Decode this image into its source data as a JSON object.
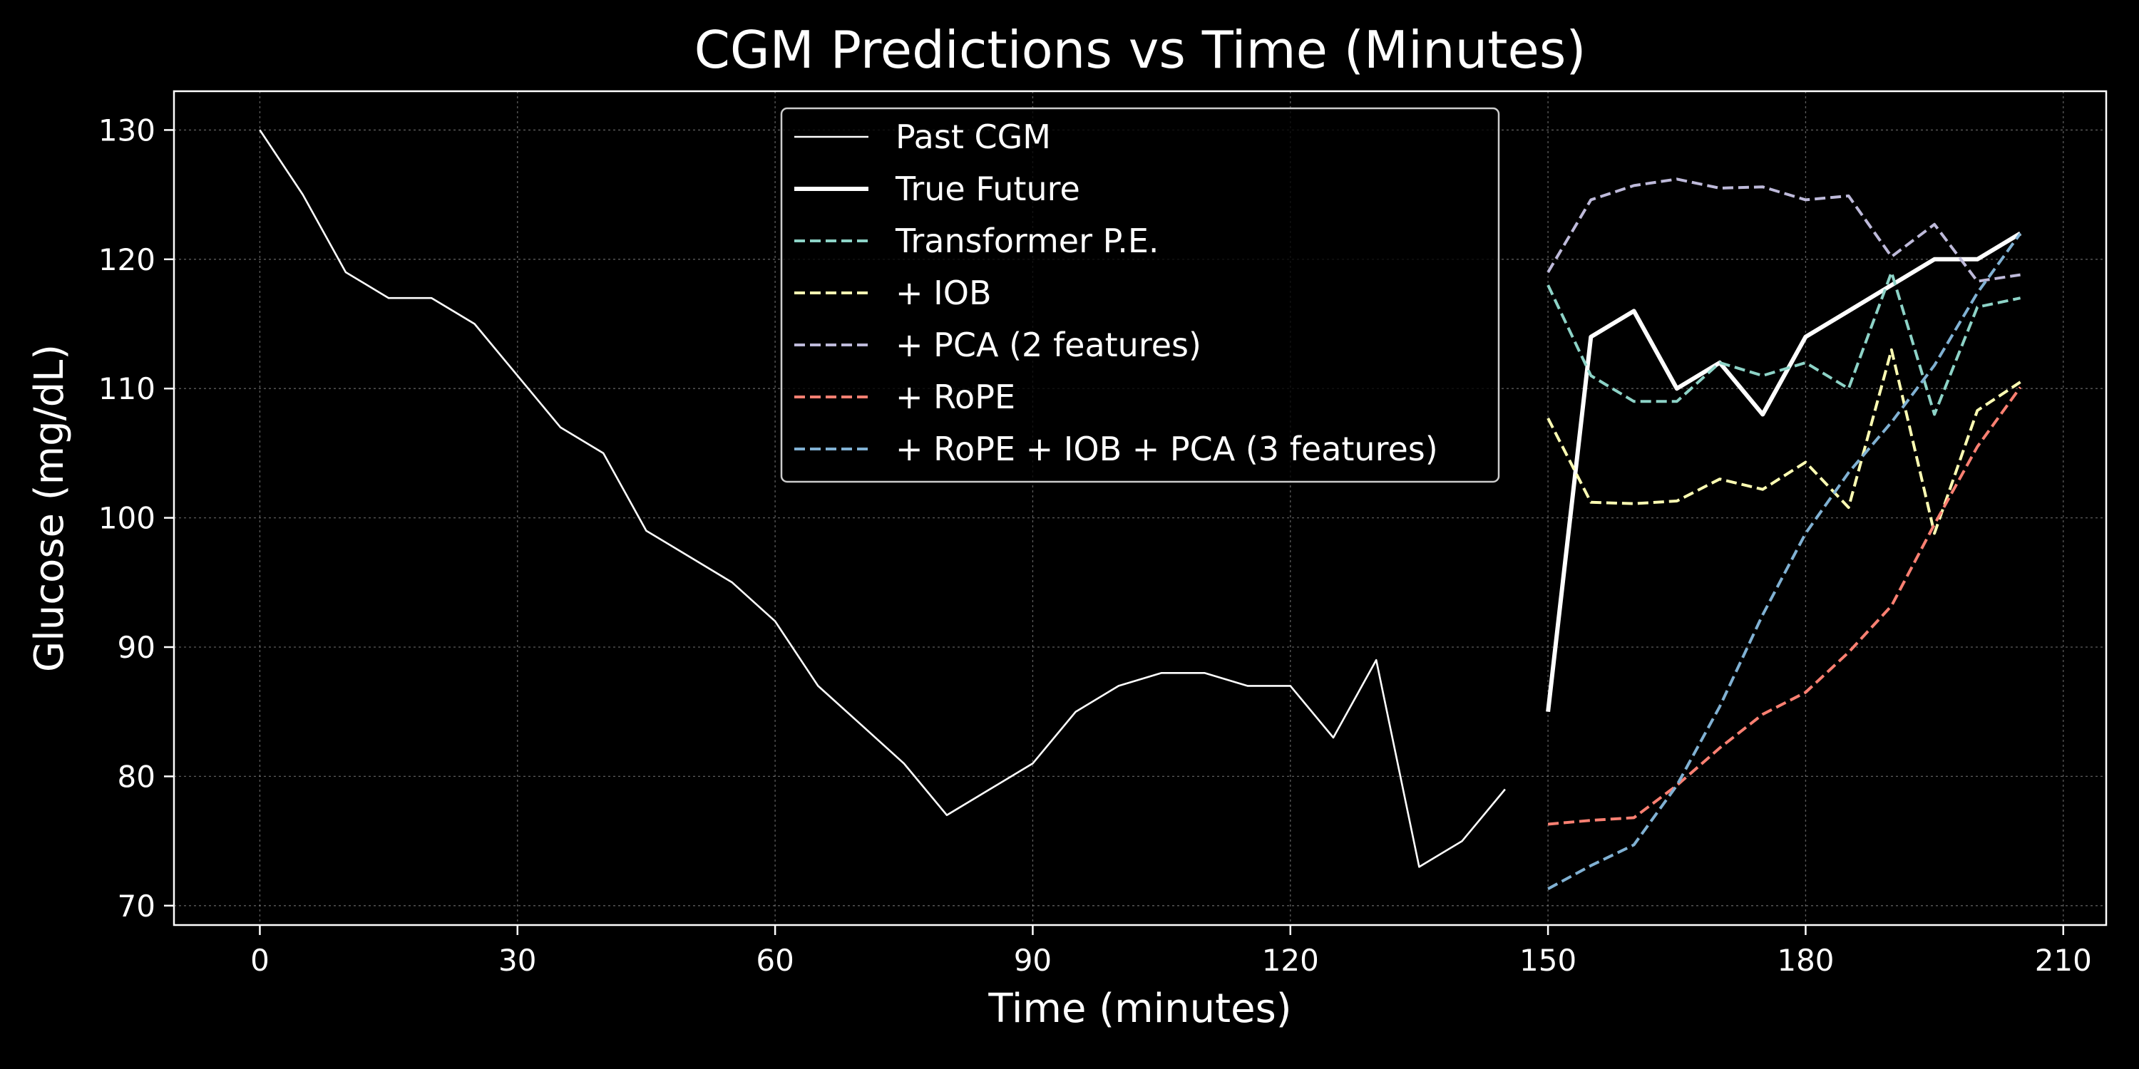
{
  "chart_data": {
    "type": "line",
    "title": "CGM Predictions vs Time (Minutes)",
    "xlabel": "Time (minutes)",
    "ylabel": "Glucose (mg/dL)",
    "xlim": [
      -10,
      215
    ],
    "ylim": [
      68.5,
      133
    ],
    "xticks": [
      0,
      30,
      60,
      90,
      120,
      150,
      180,
      210
    ],
    "yticks": [
      70,
      80,
      90,
      100,
      110,
      120,
      130
    ],
    "grid": true,
    "legend_position": "top-center",
    "background": "#000000",
    "series": [
      {
        "name": "Past CGM",
        "color": "#ffffff",
        "style": "solid-thin",
        "x": [
          0,
          5,
          10,
          15,
          20,
          25,
          30,
          35,
          40,
          45,
          50,
          55,
          60,
          65,
          70,
          75,
          80,
          85,
          90,
          95,
          100,
          105,
          110,
          115,
          120,
          125,
          130,
          135,
          140,
          145
        ],
        "y": [
          130,
          125,
          119,
          117,
          117,
          115,
          111,
          107,
          105,
          99,
          97,
          95,
          92,
          87,
          84,
          81,
          77,
          79,
          81,
          85,
          87,
          88,
          88,
          87,
          87,
          83,
          89,
          73,
          75,
          79
        ]
      },
      {
        "name": "True Future",
        "color": "#ffffff",
        "style": "solid-thick",
        "x": [
          150,
          155,
          160,
          165,
          170,
          175,
          180,
          185,
          190,
          195,
          200,
          205
        ],
        "y": [
          85,
          114,
          116,
          110,
          112,
          108,
          114,
          116,
          118,
          120,
          120,
          122
        ]
      },
      {
        "name": "Transformer P.E.",
        "color": "#8dd3c7",
        "style": "dashed",
        "x": [
          150,
          155,
          160,
          165,
          170,
          175,
          180,
          185,
          190,
          195,
          200,
          205
        ],
        "y": [
          118,
          111,
          109,
          109,
          112,
          111,
          112,
          110,
          119,
          108,
          116.3,
          117
        ]
      },
      {
        "name": "+ IOB",
        "color": "#ffffb3",
        "style": "dashed",
        "x": [
          150,
          155,
          160,
          165,
          170,
          175,
          180,
          185,
          190,
          195,
          200,
          205
        ],
        "y": [
          107.7,
          101.2,
          101.1,
          101.3,
          103,
          102.2,
          104.3,
          100.8,
          113,
          98.8,
          108.3,
          110.5
        ]
      },
      {
        "name": "+ PCA (2 features)",
        "color": "#bebada",
        "style": "dashed",
        "x": [
          150,
          155,
          160,
          165,
          170,
          175,
          180,
          185,
          190,
          195,
          200,
          205
        ],
        "y": [
          119,
          124.6,
          125.7,
          126.2,
          125.5,
          125.6,
          124.6,
          124.9,
          120.2,
          122.7,
          118.3,
          118.8
        ]
      },
      {
        "name": "+ RoPE",
        "color": "#fb8072",
        "style": "dashed",
        "x": [
          150,
          155,
          160,
          165,
          170,
          175,
          180,
          185,
          190,
          195,
          200,
          205
        ],
        "y": [
          76.3,
          76.6,
          76.8,
          79.3,
          82.2,
          84.8,
          86.5,
          89.6,
          93.2,
          99.5,
          105.5,
          110.1
        ]
      },
      {
        "name": "+ RoPE + IOB + PCA (3 features)",
        "color": "#80b1d3",
        "style": "dashed",
        "x": [
          150,
          155,
          160,
          165,
          170,
          175,
          180,
          185,
          190,
          195,
          200,
          205
        ],
        "y": [
          71.3,
          73.1,
          74.7,
          79.3,
          85.4,
          92.5,
          98.8,
          103.5,
          107.4,
          111.8,
          117.4,
          122
        ]
      }
    ]
  }
}
